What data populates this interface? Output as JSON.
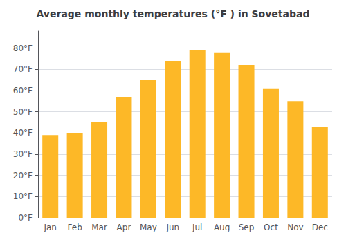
{
  "chart_data": {
    "type": "bar",
    "title": "Average monthly temperatures (°F ) in Sovetabad",
    "categories": [
      "Jan",
      "Feb",
      "Mar",
      "Apr",
      "May",
      "Jun",
      "Jul",
      "Aug",
      "Sep",
      "Oct",
      "Nov",
      "Dec"
    ],
    "values": [
      39,
      40,
      45,
      57,
      65,
      74,
      79,
      78,
      72,
      61,
      55,
      43
    ],
    "color": "#FDB827",
    "ylim": [
      0,
      88
    ],
    "yticks": [
      {
        "value": 0,
        "label": "0°F"
      },
      {
        "value": 10,
        "label": "10°F"
      },
      {
        "value": 20,
        "label": "20°F"
      },
      {
        "value": 30,
        "label": "30°F"
      },
      {
        "value": 40,
        "label": "40°F"
      },
      {
        "value": 50,
        "label": "50°F"
      },
      {
        "value": 60,
        "label": "60°F"
      },
      {
        "value": 70,
        "label": "70°F"
      },
      {
        "value": 80,
        "label": "80°F"
      }
    ],
    "grid": true
  }
}
